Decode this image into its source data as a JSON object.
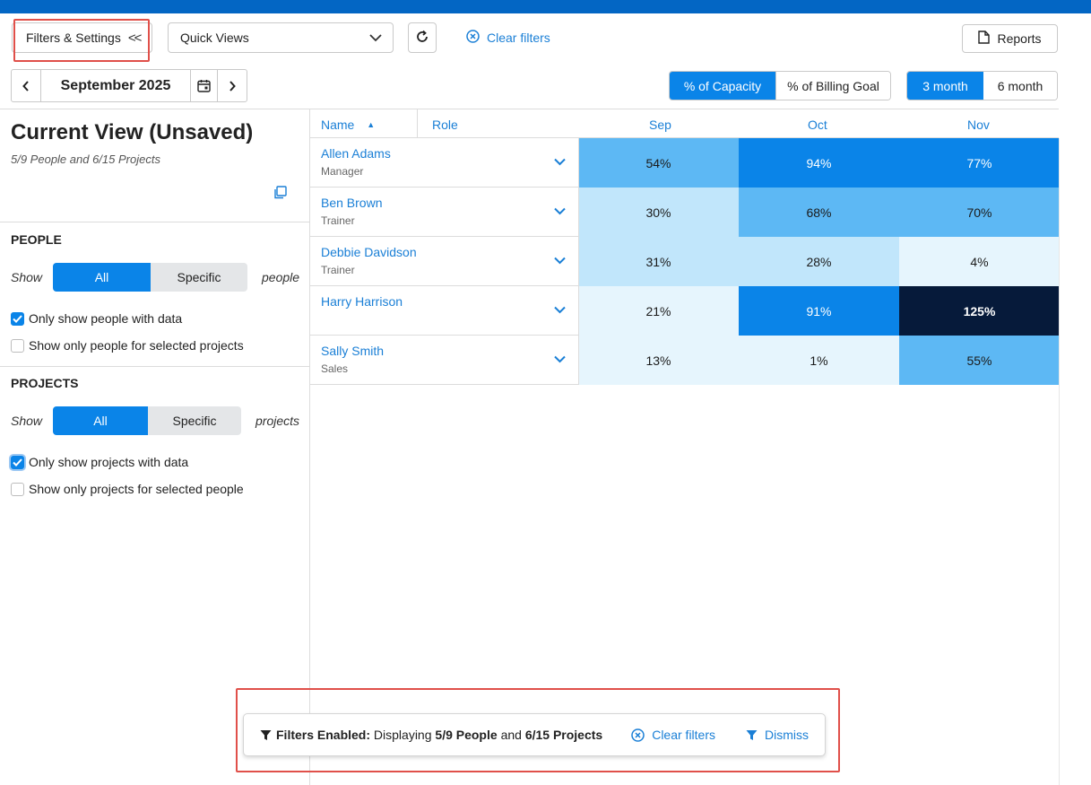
{
  "toolbar": {
    "filters_label": "Filters & Settings",
    "collapse_glyph": "<<",
    "quick_views_label": "Quick Views",
    "clear_filters_label": "Clear filters",
    "reports_label": "Reports"
  },
  "date_nav": {
    "current_period": "September 2025"
  },
  "metric_toggle": {
    "options": [
      "% of Capacity",
      "% of Billing Goal"
    ],
    "selected": "% of Capacity"
  },
  "range_toggle": {
    "options": [
      "3 month",
      "6 month"
    ],
    "selected": "3 month"
  },
  "left_panel": {
    "title": "Current View (Unsaved)",
    "subtitle": "5/9 People and 6/15 Projects",
    "people": {
      "heading": "PEOPLE",
      "show_label": "Show",
      "toggle": [
        "All",
        "Specific"
      ],
      "selected": "All",
      "trailing": "people",
      "checkboxes": [
        {
          "label": "Only show people with data",
          "checked": true
        },
        {
          "label": "Show only people for selected projects",
          "checked": false
        }
      ]
    },
    "projects": {
      "heading": "PROJECTS",
      "show_label": "Show",
      "toggle": [
        "All",
        "Specific"
      ],
      "selected": "All",
      "trailing": "projects",
      "checkboxes": [
        {
          "label": "Only show projects with data",
          "checked": true
        },
        {
          "label": "Show only projects for selected people",
          "checked": false
        }
      ]
    }
  },
  "table": {
    "columns": {
      "name": "Name",
      "role": "Role",
      "months": [
        "Sep",
        "Oct",
        "Nov"
      ]
    },
    "sort_indicator": "▲",
    "rows": [
      {
        "name": "Allen Adams",
        "role": "Manager",
        "values": [
          "54%",
          "94%",
          "77%"
        ]
      },
      {
        "name": "Ben Brown",
        "role": "Trainer",
        "values": [
          "30%",
          "68%",
          "70%"
        ]
      },
      {
        "name": "Debbie Davidson",
        "role": "Trainer",
        "values": [
          "31%",
          "28%",
          "4%"
        ]
      },
      {
        "name": "Harry Harrison",
        "role": "",
        "values": [
          "21%",
          "91%",
          "125%"
        ]
      },
      {
        "name": "Sally Smith",
        "role": "Sales",
        "values": [
          "13%",
          "1%",
          "55%"
        ]
      }
    ]
  },
  "banner": {
    "filters_enabled": "Filters Enabled:",
    "displaying": "Displaying",
    "people_count": "5/9 People",
    "and": "and",
    "projects_count": "6/15 Projects",
    "clear_label": "Clear filters",
    "dismiss_label": "Dismiss"
  },
  "colors": {
    "accent": "#0a84e8",
    "link": "#1a7fd6",
    "topbar": "#0366c4",
    "highlight_box": "#e0504a"
  }
}
